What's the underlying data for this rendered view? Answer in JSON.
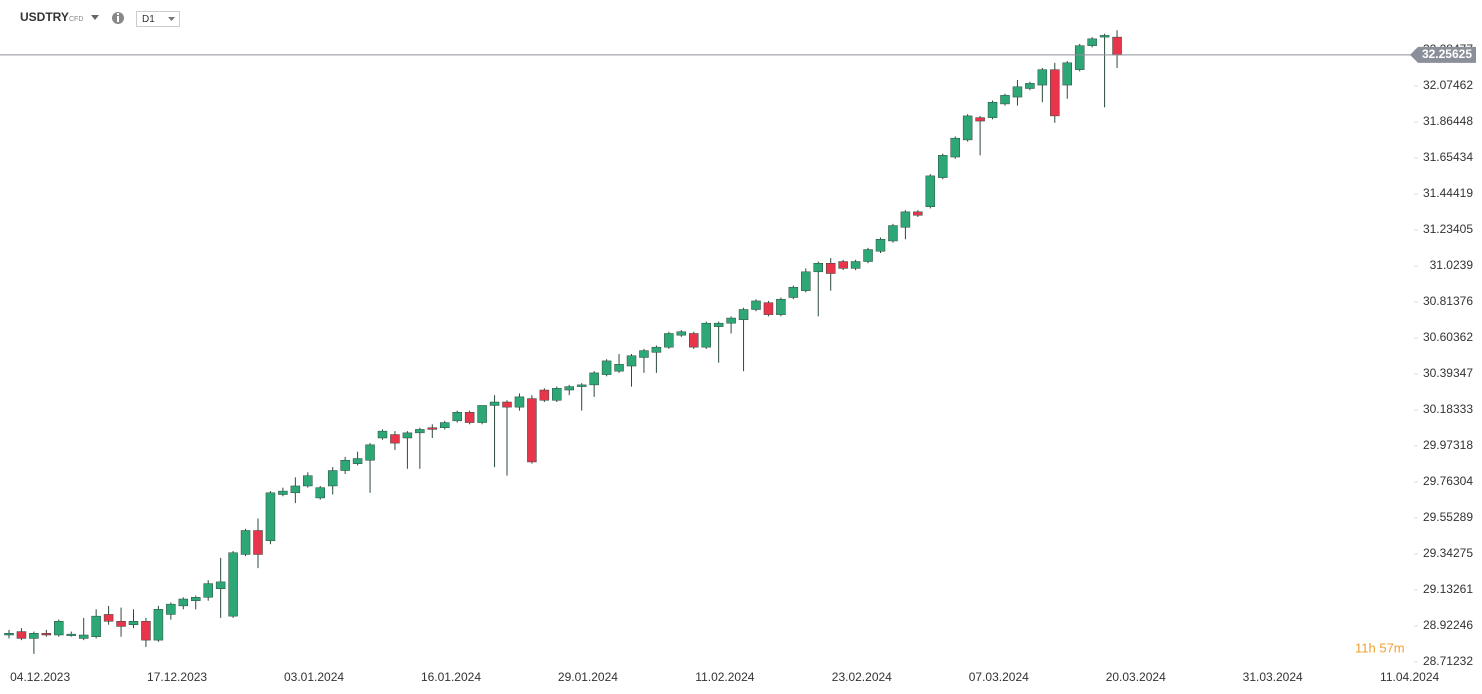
{
  "chart_data": {
    "type": "candlestick",
    "symbol": "USDTRY",
    "instrument_type": "CFD",
    "timeframe": "D1",
    "countdown": "11h 57m",
    "current_price": 32.25625,
    "up_color": "#2ea777",
    "down_color": "#e8354b",
    "ylim": [
      28.5781,
      32.5766
    ],
    "yticks": [
      28.71232,
      28.92246,
      29.13261,
      29.34275,
      29.55289,
      29.76304,
      29.97318,
      30.18333,
      30.39347,
      30.60362,
      30.81376,
      31.0239,
      31.23405,
      31.44419,
      31.65434,
      31.86448,
      32.07462,
      32.28477
    ],
    "x_labels": [
      "04.12.2023",
      "17.12.2023",
      "03.01.2024",
      "16.01.2024",
      "29.01.2024",
      "11.02.2024",
      "23.02.2024",
      "07.03.2024",
      "20.03.2024",
      "31.03.2024",
      "11.04.2024"
    ],
    "open": [
      28.87,
      28.89,
      28.85,
      28.88,
      28.87,
      28.87,
      28.85,
      28.86,
      28.99,
      28.95,
      28.93,
      28.95,
      28.84,
      28.99,
      29.04,
      29.07,
      29.09,
      29.14,
      28.98,
      29.34,
      29.48,
      29.42,
      29.69,
      29.7,
      29.74,
      29.67,
      29.74,
      29.83,
      29.87,
      29.89,
      30.02,
      30.04,
      30.02,
      30.05,
      30.08,
      30.08,
      30.12,
      30.17,
      30.11,
      30.21,
      30.23,
      30.2,
      30.25,
      30.3,
      30.24,
      30.3,
      30.32,
      30.33,
      30.39,
      30.41,
      30.44,
      30.49,
      30.52,
      30.55,
      30.62,
      30.63,
      30.55,
      30.67,
      30.69,
      30.71,
      30.77,
      30.81,
      30.74,
      30.84,
      30.88,
      30.99,
      31.04,
      31.05,
      31.01,
      31.05,
      31.11,
      31.17,
      31.25,
      31.34,
      31.37,
      31.54,
      31.66,
      31.76,
      31.89,
      31.89,
      31.97,
      32.01,
      32.06,
      32.08,
      32.17,
      32.08,
      32.17,
      32.31,
      32.36,
      32.36
    ],
    "high": [
      28.9,
      28.91,
      28.89,
      28.9,
      28.96,
      28.89,
      28.97,
      29.02,
      29.04,
      29.03,
      29.02,
      28.97,
      29.04,
      29.06,
      29.09,
      29.1,
      29.19,
      29.32,
      29.36,
      29.49,
      29.55,
      29.71,
      29.73,
      29.79,
      29.82,
      29.74,
      29.85,
      29.91,
      29.94,
      29.99,
      30.07,
      30.06,
      30.06,
      30.08,
      30.1,
      30.12,
      30.18,
      30.18,
      30.21,
      30.27,
      30.24,
      30.28,
      30.27,
      30.31,
      30.32,
      30.33,
      30.34,
      30.41,
      30.48,
      30.51,
      30.51,
      30.54,
      30.56,
      30.64,
      30.65,
      30.64,
      30.7,
      30.7,
      30.73,
      30.78,
      30.83,
      30.82,
      30.84,
      30.91,
      31.01,
      31.05,
      31.07,
      31.06,
      31.06,
      31.13,
      31.19,
      31.27,
      31.35,
      31.35,
      31.56,
      31.68,
      31.78,
      31.91,
      31.9,
      31.99,
      32.03,
      32.11,
      32.1,
      32.18,
      32.21,
      32.22,
      32.32,
      32.36,
      32.38,
      32.4
    ],
    "low": [
      28.85,
      28.84,
      28.76,
      28.86,
      28.86,
      28.86,
      28.84,
      28.85,
      28.93,
      28.86,
      28.91,
      28.8,
      28.83,
      28.96,
      29.02,
      29.02,
      29.07,
      28.97,
      28.97,
      29.33,
      29.26,
      29.4,
      29.68,
      29.64,
      29.73,
      29.66,
      29.69,
      29.81,
      29.86,
      29.7,
      30.01,
      29.95,
      29.84,
      29.84,
      30.02,
      30.07,
      30.11,
      30.1,
      30.1,
      29.85,
      29.8,
      30.18,
      29.87,
      30.23,
      30.23,
      30.27,
      30.18,
      30.26,
      30.38,
      30.4,
      30.32,
      30.4,
      30.4,
      30.54,
      30.61,
      30.54,
      30.54,
      30.46,
      30.63,
      30.41,
      30.76,
      30.73,
      30.73,
      30.83,
      30.87,
      30.73,
      30.88,
      31.0,
      31.0,
      31.04,
      31.1,
      31.16,
      31.18,
      31.31,
      31.36,
      31.53,
      31.65,
      31.75,
      31.67,
      31.88,
      31.96,
      31.96,
      32.05,
      31.98,
      31.86,
      32.0,
      32.16,
      32.3,
      31.95,
      32.18
    ],
    "close": [
      28.88,
      28.85,
      28.88,
      28.87,
      28.95,
      28.875,
      28.87,
      28.98,
      28.95,
      28.92,
      28.95,
      28.84,
      29.02,
      29.05,
      29.08,
      29.09,
      29.17,
      29.18,
      29.35,
      29.48,
      29.34,
      29.7,
      29.71,
      29.74,
      29.8,
      29.73,
      29.83,
      29.89,
      29.9,
      29.98,
      30.06,
      29.99,
      30.05,
      30.07,
      30.07,
      30.11,
      30.17,
      30.11,
      30.21,
      30.23,
      30.2,
      30.26,
      29.88,
      30.24,
      30.31,
      30.32,
      30.33,
      30.4,
      30.47,
      30.45,
      30.5,
      30.53,
      30.55,
      30.63,
      30.64,
      30.55,
      30.69,
      30.69,
      30.72,
      30.77,
      30.82,
      30.74,
      30.83,
      30.9,
      30.99,
      31.04,
      30.98,
      31.01,
      31.05,
      31.12,
      31.18,
      31.26,
      31.34,
      31.32,
      31.55,
      31.67,
      31.77,
      31.9,
      31.87,
      31.98,
      32.02,
      32.07,
      32.09,
      32.17,
      31.9,
      32.21,
      32.31,
      32.35,
      32.37,
      32.25625
    ]
  }
}
